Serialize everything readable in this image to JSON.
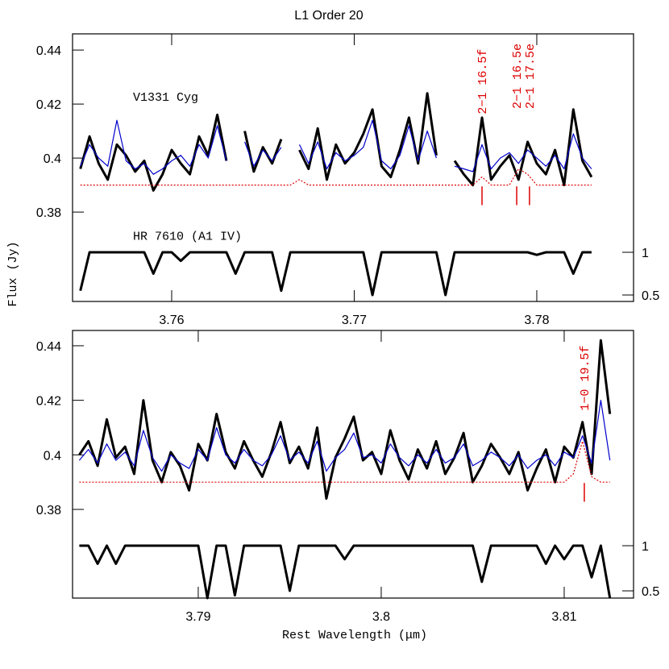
{
  "chart_data": [
    {
      "type": "line",
      "title": "L1 Order 20",
      "ylabel": "Flux (Jy)",
      "xlim": [
        3.75457,
        3.7853
      ],
      "ylim": [
        0.3469,
        0.446
      ],
      "y2lim": [
        0.4245,
        3.557
      ],
      "xticks": [
        3.76,
        3.77,
        3.78
      ],
      "yticks": [
        0.38,
        0.4,
        0.42,
        0.44
      ],
      "y2ticks": [
        0.5,
        1
      ],
      "x": [
        3.755,
        3.7555,
        3.756,
        3.7565,
        3.757,
        3.7575,
        3.758,
        3.7585,
        3.759,
        3.7595,
        3.76,
        3.7605,
        3.761,
        3.7615,
        3.762,
        3.7625,
        3.763,
        3.7635,
        3.764,
        3.7645,
        3.765,
        3.7655,
        3.766,
        3.7665,
        3.767,
        3.7675,
        3.768,
        3.7685,
        3.769,
        3.7695,
        3.77,
        3.7705,
        3.771,
        3.7715,
        3.772,
        3.7725,
        3.773,
        3.7735,
        3.774,
        3.7745,
        3.775,
        3.7755,
        3.776,
        3.7765,
        3.777,
        3.7775,
        3.778,
        3.7785,
        3.779,
        3.7795,
        3.78,
        3.7805,
        3.781,
        3.7815,
        3.782,
        3.7825,
        3.783
      ],
      "series": [
        {
          "name": "V1331 Cyg",
          "color": "#000000",
          "linewidth": 3,
          "values": [
            0.396,
            0.408,
            0.398,
            0.392,
            0.405,
            0.401,
            0.395,
            0.399,
            0.388,
            0.394,
            0.403,
            0.398,
            0.394,
            0.408,
            0.401,
            0.416,
            0.399,
            null,
            0.41,
            0.395,
            0.404,
            0.398,
            0.407,
            null,
            0.403,
            0.396,
            0.411,
            0.392,
            0.405,
            0.398,
            0.402,
            0.409,
            0.418,
            0.397,
            0.393,
            0.403,
            0.415,
            0.398,
            0.424,
            0.401,
            null,
            0.399,
            0.394,
            0.39,
            0.415,
            0.392,
            0.397,
            0.401,
            0.392,
            0.406,
            0.398,
            0.394,
            0.403,
            0.39,
            0.418,
            0.399,
            0.393
          ]
        },
        {
          "color": "#0000cc",
          "linewidth": 1.2,
          "values": [
            0.397,
            0.405,
            0.4,
            0.397,
            0.414,
            0.399,
            0.396,
            0.398,
            0.394,
            0.396,
            0.399,
            0.401,
            0.397,
            0.405,
            0.4,
            0.412,
            0.399,
            null,
            0.406,
            0.397,
            0.403,
            0.399,
            0.404,
            null,
            0.405,
            0.398,
            0.406,
            0.396,
            0.402,
            0.399,
            0.401,
            0.404,
            0.414,
            0.399,
            0.396,
            0.401,
            0.412,
            0.399,
            0.41,
            0.4,
            null,
            0.397,
            0.396,
            0.395,
            0.405,
            0.396,
            0.4,
            0.402,
            0.398,
            0.403,
            0.4,
            0.397,
            0.401,
            0.396,
            0.409,
            0.4,
            0.396
          ]
        },
        {
          "color": "#dd0000",
          "linewidth": 1.2,
          "linestyle": "dotted",
          "values": [
            0.39,
            0.39,
            0.39,
            0.39,
            0.39,
            0.39,
            0.39,
            0.39,
            0.39,
            0.39,
            0.39,
            0.39,
            0.39,
            0.39,
            0.39,
            0.39,
            0.39,
            0.39,
            0.39,
            0.39,
            0.39,
            0.39,
            0.39,
            0.39,
            0.392,
            0.39,
            0.39,
            0.39,
            0.39,
            0.39,
            0.39,
            0.39,
            0.39,
            0.39,
            0.39,
            0.39,
            0.39,
            0.39,
            0.39,
            0.39,
            0.39,
            0.39,
            0.39,
            0.39,
            0.393,
            0.39,
            0.39,
            0.39,
            0.396,
            0.394,
            0.39,
            0.39,
            0.39,
            0.39,
            0.39,
            0.39,
            0.39
          ]
        },
        {
          "name": "HR 7610 (A1 IV)",
          "color": "#000000",
          "linewidth": 3,
          "axis": "y2",
          "values": [
            0.55,
            1,
            1,
            1,
            1,
            1,
            1,
            1,
            0.75,
            1,
            1,
            0.9,
            1,
            1,
            1,
            1,
            1,
            0.75,
            1,
            1,
            1,
            1,
            0.55,
            1,
            1,
            1,
            1,
            1,
            1,
            1,
            1,
            1,
            0.5,
            1,
            1,
            1,
            1,
            1,
            1,
            1,
            0.5,
            1,
            1,
            1,
            1,
            1,
            1,
            1,
            1,
            1,
            0.97,
            1,
            1,
            1,
            0.75,
            1,
            1
          ]
        }
      ],
      "annotations": [
        {
          "label": "2−1  16.5f",
          "x": 3.777
        },
        {
          "label": "2−1  16.5e",
          "x": 3.7789
        },
        {
          "label": "2−1  17.5e",
          "x": 3.7796
        }
      ]
    },
    {
      "type": "line",
      "xlabel": "Rest Wavelength (μm)",
      "xlim": [
        3.78313,
        3.81379
      ],
      "ylim": [
        0.3475,
        0.4456
      ],
      "y2lim": [
        0.42,
        3.384
      ],
      "xticks": [
        3.79,
        3.8,
        3.81
      ],
      "yticks": [
        0.38,
        0.4,
        0.42,
        0.44
      ],
      "y2ticks": [
        0.5,
        1
      ],
      "x": [
        3.7835,
        3.784,
        3.7845,
        3.785,
        3.7855,
        3.786,
        3.7865,
        3.787,
        3.7875,
        3.788,
        3.7885,
        3.789,
        3.7895,
        3.79,
        3.7905,
        3.791,
        3.7915,
        3.792,
        3.7925,
        3.793,
        3.7935,
        3.794,
        3.7945,
        3.795,
        3.7955,
        3.796,
        3.7965,
        3.797,
        3.7975,
        3.798,
        3.7985,
        3.799,
        3.7995,
        3.8,
        3.8005,
        3.801,
        3.8015,
        3.802,
        3.8025,
        3.803,
        3.8035,
        3.804,
        3.8045,
        3.805,
        3.8055,
        3.806,
        3.8065,
        3.807,
        3.8075,
        3.808,
        3.8085,
        3.809,
        3.8095,
        3.81,
        3.8105,
        3.811,
        3.8115,
        3.812,
        3.8125
      ],
      "series": [
        {
          "color": "#000000",
          "linewidth": 3,
          "values": [
            0.4,
            0.405,
            0.396,
            0.413,
            0.399,
            0.403,
            0.393,
            0.42,
            0.398,
            0.39,
            0.401,
            0.396,
            0.387,
            0.404,
            0.398,
            0.415,
            0.401,
            0.395,
            0.405,
            0.398,
            0.392,
            0.401,
            0.412,
            0.397,
            0.403,
            0.395,
            0.41,
            0.384,
            0.399,
            0.406,
            0.414,
            0.398,
            0.401,
            0.393,
            0.409,
            0.398,
            0.391,
            0.402,
            0.395,
            0.405,
            0.393,
            0.399,
            0.408,
            0.39,
            0.396,
            0.404,
            0.399,
            0.393,
            0.401,
            0.387,
            0.395,
            0.402,
            0.39,
            0.403,
            0.399,
            0.412,
            0.393,
            0.442,
            0.415
          ]
        },
        {
          "color": "#0000cc",
          "linewidth": 1.2,
          "values": [
            0.398,
            0.402,
            0.397,
            0.404,
            0.398,
            0.401,
            0.396,
            0.409,
            0.399,
            0.394,
            0.4,
            0.397,
            0.395,
            0.402,
            0.398,
            0.41,
            0.4,
            0.397,
            0.402,
            0.398,
            0.396,
            0.4,
            0.407,
            0.398,
            0.401,
            0.397,
            0.405,
            0.394,
            0.399,
            0.402,
            0.408,
            0.399,
            0.4,
            0.397,
            0.404,
            0.399,
            0.396,
            0.4,
            0.397,
            0.402,
            0.397,
            0.399,
            0.404,
            0.396,
            0.398,
            0.401,
            0.399,
            0.396,
            0.4,
            0.395,
            0.398,
            0.4,
            0.396,
            0.401,
            0.399,
            0.407,
            0.397,
            0.42,
            0.398
          ]
        },
        {
          "color": "#dd0000",
          "linewidth": 1.2,
          "linestyle": "dotted",
          "values": [
            0.39,
            0.39,
            0.39,
            0.39,
            0.39,
            0.39,
            0.39,
            0.39,
            0.39,
            0.39,
            0.39,
            0.39,
            0.39,
            0.39,
            0.39,
            0.39,
            0.39,
            0.39,
            0.39,
            0.39,
            0.39,
            0.39,
            0.39,
            0.39,
            0.39,
            0.39,
            0.39,
            0.39,
            0.39,
            0.39,
            0.39,
            0.39,
            0.39,
            0.39,
            0.39,
            0.39,
            0.39,
            0.39,
            0.39,
            0.39,
            0.39,
            0.39,
            0.39,
            0.39,
            0.39,
            0.39,
            0.39,
            0.39,
            0.39,
            0.39,
            0.39,
            0.39,
            0.39,
            0.39,
            0.393,
            0.405,
            0.392,
            0.39,
            0.39
          ]
        },
        {
          "color": "#000000",
          "linewidth": 3,
          "axis": "y2",
          "values": [
            1,
            1,
            0.8,
            1,
            0.8,
            1,
            1,
            1,
            1,
            1,
            1,
            1,
            1,
            1,
            0.42,
            1,
            1,
            0.45,
            1,
            1,
            1,
            1,
            1,
            0.5,
            1,
            1,
            1,
            1,
            1,
            0.85,
            1,
            1,
            1,
            1,
            1,
            1,
            1,
            1,
            1,
            1,
            1,
            1,
            1,
            1,
            0.6,
            1,
            1,
            1,
            1,
            1,
            1,
            0.8,
            1,
            0.85,
            1,
            1,
            0.65,
            1,
            0.42
          ]
        }
      ],
      "annotations": [
        {
          "label": "1−0  19.5f",
          "x": 3.8111
        }
      ]
    }
  ]
}
